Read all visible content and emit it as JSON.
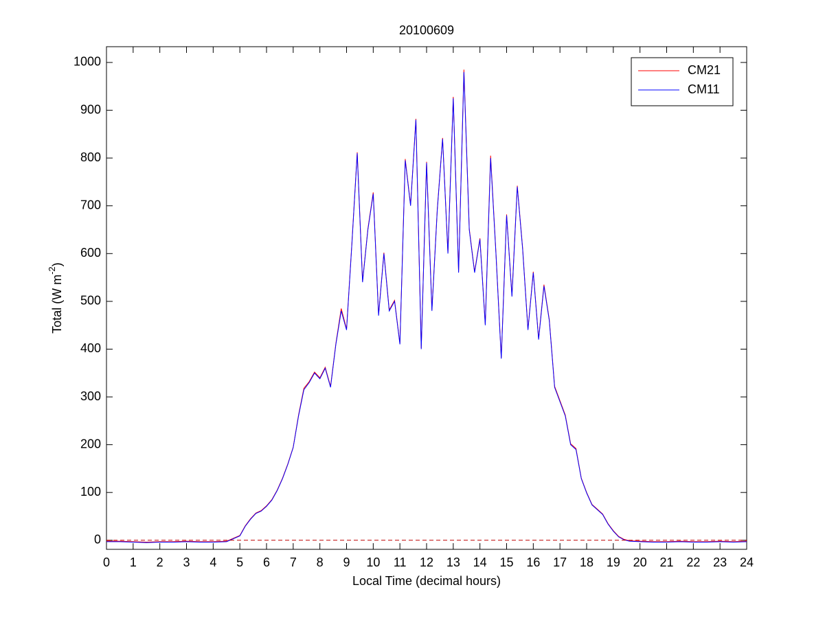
{
  "chart_data": {
    "type": "line",
    "title": "20100609",
    "xlabel": "Local Time (decimal hours)",
    "ylabel": [
      "Total (W m",
      "-2",
      ")"
    ],
    "x": [
      0,
      0.5,
      1,
      1.5,
      2,
      2.5,
      3,
      3.5,
      4,
      4.5,
      5,
      5.2,
      5.4,
      5.6,
      5.8,
      6,
      6.2,
      6.4,
      6.6,
      6.8,
      7,
      7.2,
      7.4,
      7.6,
      7.8,
      8,
      8.2,
      8.4,
      8.6,
      8.8,
      9,
      9.2,
      9.4,
      9.6,
      9.8,
      10,
      10.2,
      10.4,
      10.6,
      10.8,
      11,
      11.2,
      11.4,
      11.6,
      11.8,
      12,
      12.2,
      12.4,
      12.6,
      12.8,
      13,
      13.2,
      13.4,
      13.6,
      13.8,
      14,
      14.2,
      14.4,
      14.6,
      14.8,
      15,
      15.2,
      15.4,
      15.6,
      15.8,
      16,
      16.2,
      16.4,
      16.6,
      16.8,
      17,
      17.2,
      17.4,
      17.6,
      17.8,
      18,
      18.2,
      18.4,
      18.6,
      18.8,
      19,
      19.2,
      19.4,
      19.6,
      20,
      20.5,
      21,
      21.5,
      22,
      22.5,
      23,
      23.5,
      24
    ],
    "series": [
      {
        "name": "CM21",
        "color": "#ff0000",
        "values": [
          -2,
          -2,
          -3,
          -4,
          -3,
          -3,
          -2,
          -3,
          -3,
          -2,
          10,
          30,
          45,
          57,
          62,
          72,
          85,
          105,
          130,
          160,
          195,
          262,
          318,
          332,
          352,
          340,
          362,
          322,
          412,
          485,
          442,
          622,
          812,
          542,
          652,
          728,
          472,
          602,
          482,
          502,
          412,
          798,
          702,
          882,
          402,
          792,
          482,
          692,
          842,
          602,
          928,
          562,
          985,
          652,
          562,
          632,
          452,
          805,
          602,
          382,
          682,
          512,
          742,
          612,
          442,
          562,
          422,
          535,
          462,
          322,
          292,
          262,
          202,
          192,
          130,
          100,
          75,
          65,
          55,
          35,
          20,
          8,
          2,
          -1,
          -2,
          -3,
          -3,
          -2,
          -3,
          -3,
          -2,
          -3,
          -2
        ]
      },
      {
        "name": "CM11",
        "color": "#0000ff",
        "values": [
          -3,
          -3,
          -4,
          -5,
          -4,
          -4,
          -3,
          -4,
          -4,
          -3,
          9,
          29,
          44,
          56,
          61,
          71,
          84,
          104,
          129,
          159,
          194,
          260,
          315,
          330,
          350,
          338,
          360,
          320,
          410,
          480,
          440,
          620,
          810,
          540,
          650,
          725,
          470,
          600,
          480,
          500,
          410,
          795,
          700,
          880,
          400,
          790,
          480,
          690,
          840,
          600,
          925,
          560,
          980,
          650,
          560,
          630,
          450,
          800,
          600,
          380,
          680,
          510,
          740,
          610,
          440,
          560,
          420,
          532,
          460,
          320,
          290,
          260,
          200,
          190,
          129,
          99,
          74,
          64,
          54,
          34,
          19,
          7,
          1,
          -2,
          -3,
          -4,
          -4,
          -3,
          -4,
          -4,
          -3,
          -4,
          -3
        ]
      }
    ],
    "reference_line": {
      "value": 0,
      "color": "#c00000"
    },
    "xlim": [
      0,
      24
    ],
    "ylim": [
      -19,
      1033
    ],
    "xticks": [
      0,
      1,
      2,
      3,
      4,
      5,
      6,
      7,
      8,
      9,
      10,
      11,
      12,
      13,
      14,
      15,
      16,
      17,
      18,
      19,
      20,
      21,
      22,
      23,
      24
    ],
    "yticks": [
      0,
      100,
      200,
      300,
      400,
      500,
      600,
      700,
      800,
      900,
      1000
    ],
    "legend": "upper right"
  }
}
